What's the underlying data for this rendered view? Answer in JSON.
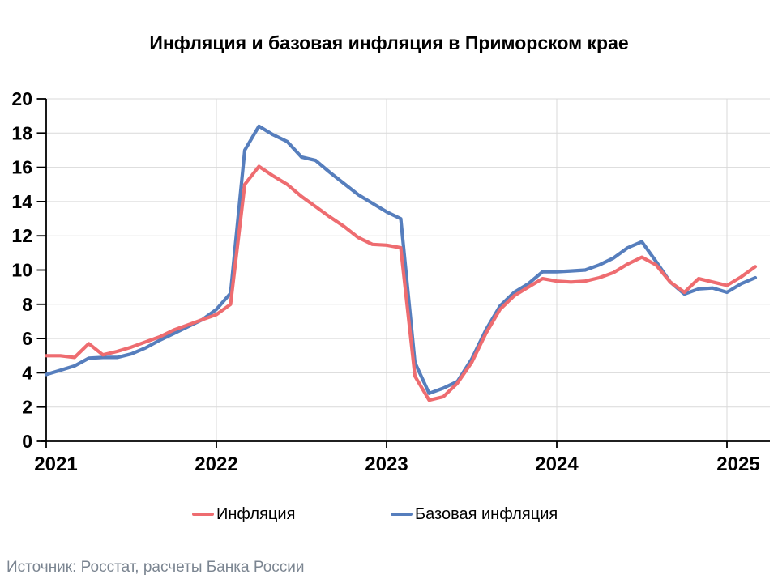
{
  "title": "Инфляция и базовая инфляция в Приморском крае",
  "source_note": "Источник: Росстат, расчеты Банка России",
  "legend": {
    "items": [
      {
        "label": "Инфляция",
        "color": "#ee6c70"
      },
      {
        "label": "Базовая инфляция",
        "color": "#567ebd"
      }
    ]
  },
  "colors": {
    "inflation_line": "#ee6c70",
    "core_inflation_line": "#567ebd",
    "gridline": "#d9d9d9",
    "axis": "#000000",
    "source_text": "#7b8591"
  },
  "chart_data": {
    "type": "line",
    "title": "Инфляция и базовая инфляция в Приморском крае",
    "xlabel": "",
    "ylabel": "",
    "ylim": [
      0,
      20
    ],
    "grid": true,
    "legend_position": "bottom",
    "x_start": "2021-01",
    "x_end": "2025-03",
    "frequency": "monthly",
    "x_tick_labels": [
      "2021",
      "2022",
      "2023",
      "2024",
      "2025"
    ],
    "y_tick_labels": [
      "0",
      "2",
      "4",
      "6",
      "8",
      "10",
      "12",
      "14",
      "16",
      "18",
      "20"
    ],
    "y_ticks": [
      0,
      2,
      4,
      6,
      8,
      10,
      12,
      14,
      16,
      18,
      20
    ],
    "series": [
      {
        "name": "Базовая инфляция",
        "color": "#567ebd",
        "values": [
          3.9,
          4.15,
          4.4,
          4.85,
          4.9,
          4.9,
          5.1,
          5.45,
          5.9,
          6.3,
          6.7,
          7.1,
          7.7,
          8.65,
          17.0,
          18.4,
          17.9,
          17.5,
          16.6,
          16.4,
          15.7,
          15.05,
          14.4,
          13.9,
          13.4,
          13.0,
          4.6,
          2.8,
          3.1,
          3.5,
          4.8,
          6.5,
          7.9,
          8.7,
          9.2,
          9.9,
          9.9,
          9.95,
          10.0,
          10.3,
          10.7,
          11.3,
          11.65,
          10.5,
          9.3,
          8.6,
          8.9,
          8.95,
          8.7,
          9.2,
          9.55
        ]
      },
      {
        "name": "Инфляция",
        "color": "#ee6c70",
        "values": [
          5.0,
          5.0,
          4.9,
          5.7,
          5.05,
          5.25,
          5.5,
          5.8,
          6.1,
          6.5,
          6.8,
          7.1,
          7.4,
          8.0,
          15.0,
          16.05,
          15.5,
          15.0,
          14.3,
          13.7,
          13.1,
          12.55,
          11.9,
          11.5,
          11.45,
          11.3,
          3.8,
          2.4,
          2.6,
          3.4,
          4.6,
          6.3,
          7.7,
          8.5,
          9.0,
          9.5,
          9.35,
          9.3,
          9.35,
          9.55,
          9.85,
          10.35,
          10.75,
          10.3,
          9.3,
          8.7,
          9.5,
          9.3,
          9.1,
          9.6,
          10.2
        ]
      }
    ]
  }
}
